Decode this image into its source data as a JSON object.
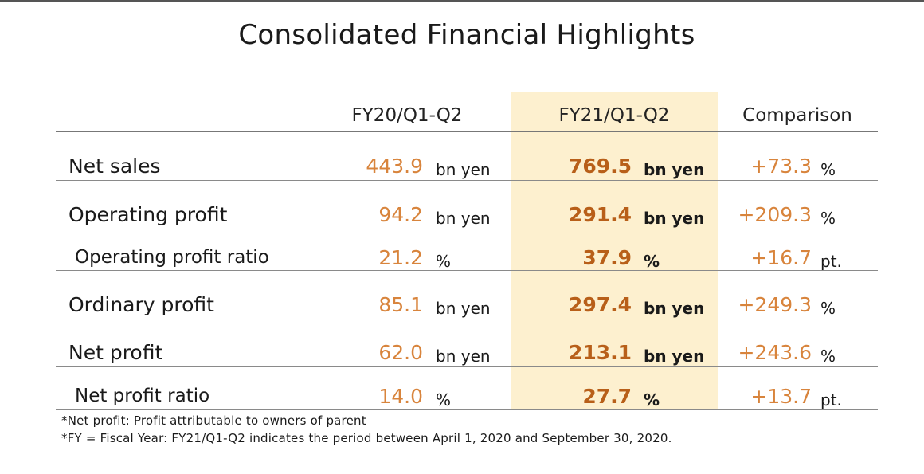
{
  "title": "Consolidated Financial Highlights",
  "columns": {
    "prev": "FY20/Q1-Q2",
    "cur": "FY21/Q1-Q2",
    "cmp": "Comparison"
  },
  "rows": [
    {
      "label": "Net sales",
      "prev": "443.9",
      "prev_unit": "bn yen",
      "cur": "769.5",
      "cur_unit": "bn yen",
      "cmp": "+73.3",
      "cmp_unit": "%"
    },
    {
      "label": "Operating profit",
      "prev": "94.2",
      "prev_unit": "bn yen",
      "cur": "291.4",
      "cur_unit": "bn yen",
      "cmp": "+209.3",
      "cmp_unit": "%"
    },
    {
      "label": "Operating profit ratio",
      "prev": "21.2",
      "prev_unit": "%",
      "cur": "37.9",
      "cur_unit": "%",
      "cmp": "+16.7",
      "cmp_unit": "pt."
    },
    {
      "label": "Ordinary profit",
      "prev": "85.1",
      "prev_unit": "bn yen",
      "cur": "297.4",
      "cur_unit": "bn yen",
      "cmp": "+249.3",
      "cmp_unit": "%"
    },
    {
      "label": "Net profit",
      "prev": "62.0",
      "prev_unit": "bn yen",
      "cur": "213.1",
      "cur_unit": "bn yen",
      "cmp": "+243.6",
      "cmp_unit": "%"
    },
    {
      "label": "Net profit ratio",
      "prev": "14.0",
      "prev_unit": "%",
      "cur": "27.7",
      "cur_unit": "%",
      "cmp": "+13.7",
      "cmp_unit": "pt."
    }
  ],
  "footnotes": [
    "*Net profit: Profit attributable to owners of parent",
    "*FY = Fiscal Year: FY21/Q1-Q2 indicates the period between April 1, 2020 and September 30, 2020."
  ],
  "colors": {
    "highlight_column": "#fdf0cf",
    "value_orange": "#d8843c",
    "value_bold_orange": "#b85f19"
  }
}
